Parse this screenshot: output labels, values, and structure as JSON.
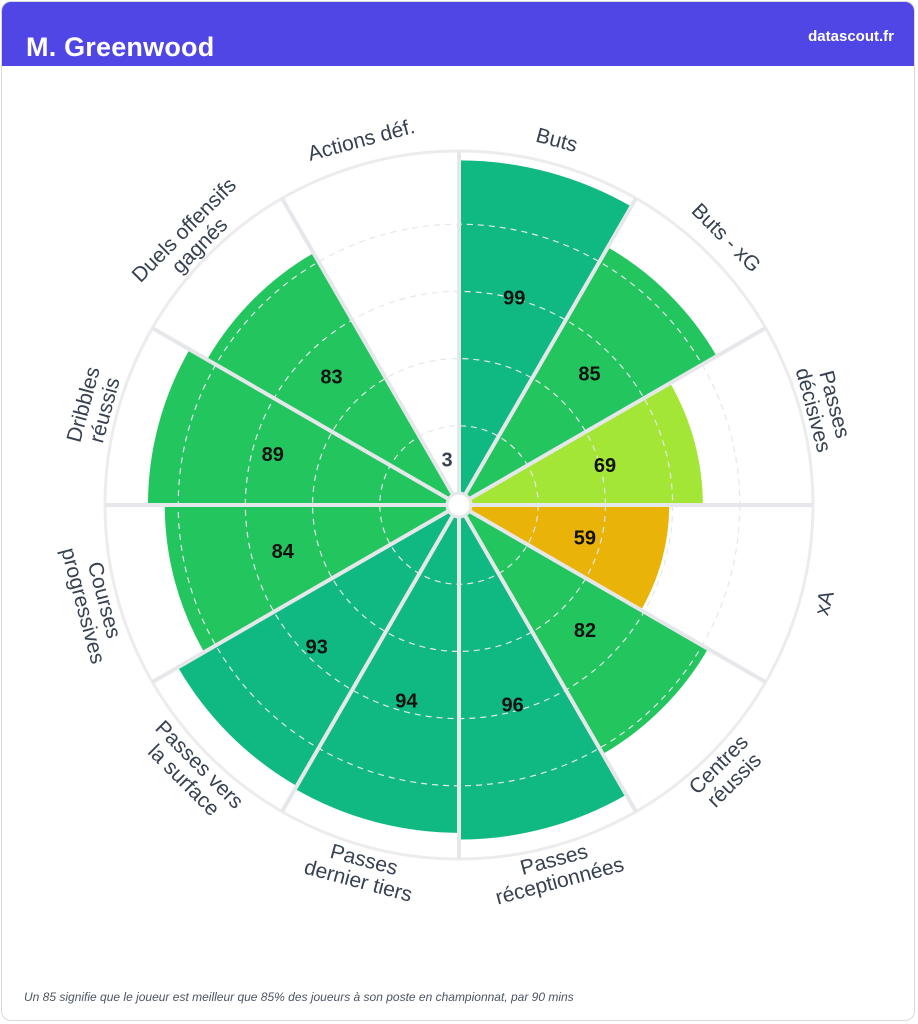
{
  "header": {
    "player_name": "M. Greenwood",
    "site": "datascout.fr"
  },
  "footnote": "Un 85 signifie que le joueur est meilleur que 85% des joueurs à son poste en championnat, par 90 mins",
  "colors": {
    "header_bg": "#5046e5",
    "elite": "#10b981",
    "good": "#22c55e",
    "above_avg": "#a3e635",
    "average": "#eab308",
    "low": "#ffffff"
  },
  "chart_data": {
    "type": "polar_bar",
    "rmax": 100,
    "categories": [
      {
        "label": "Buts",
        "value": 99
      },
      {
        "label": "Buts - xG",
        "value": 85
      },
      {
        "label": "Passes décisives",
        "value": 69
      },
      {
        "label": "xA",
        "value": 59
      },
      {
        "label": "Centres réussis",
        "value": 82
      },
      {
        "label": "Passes réceptionnées",
        "value": 96
      },
      {
        "label": "Passes dernier tiers",
        "value": 94
      },
      {
        "label": "Passes vers la surface",
        "value": 93
      },
      {
        "label": "Courses progressives",
        "value": 84
      },
      {
        "label": "Dribbles réussis",
        "value": 89
      },
      {
        "label": "Duels offensifs gagnés",
        "value": 83
      },
      {
        "label": "Actions déf.",
        "value": 3
      }
    ]
  }
}
